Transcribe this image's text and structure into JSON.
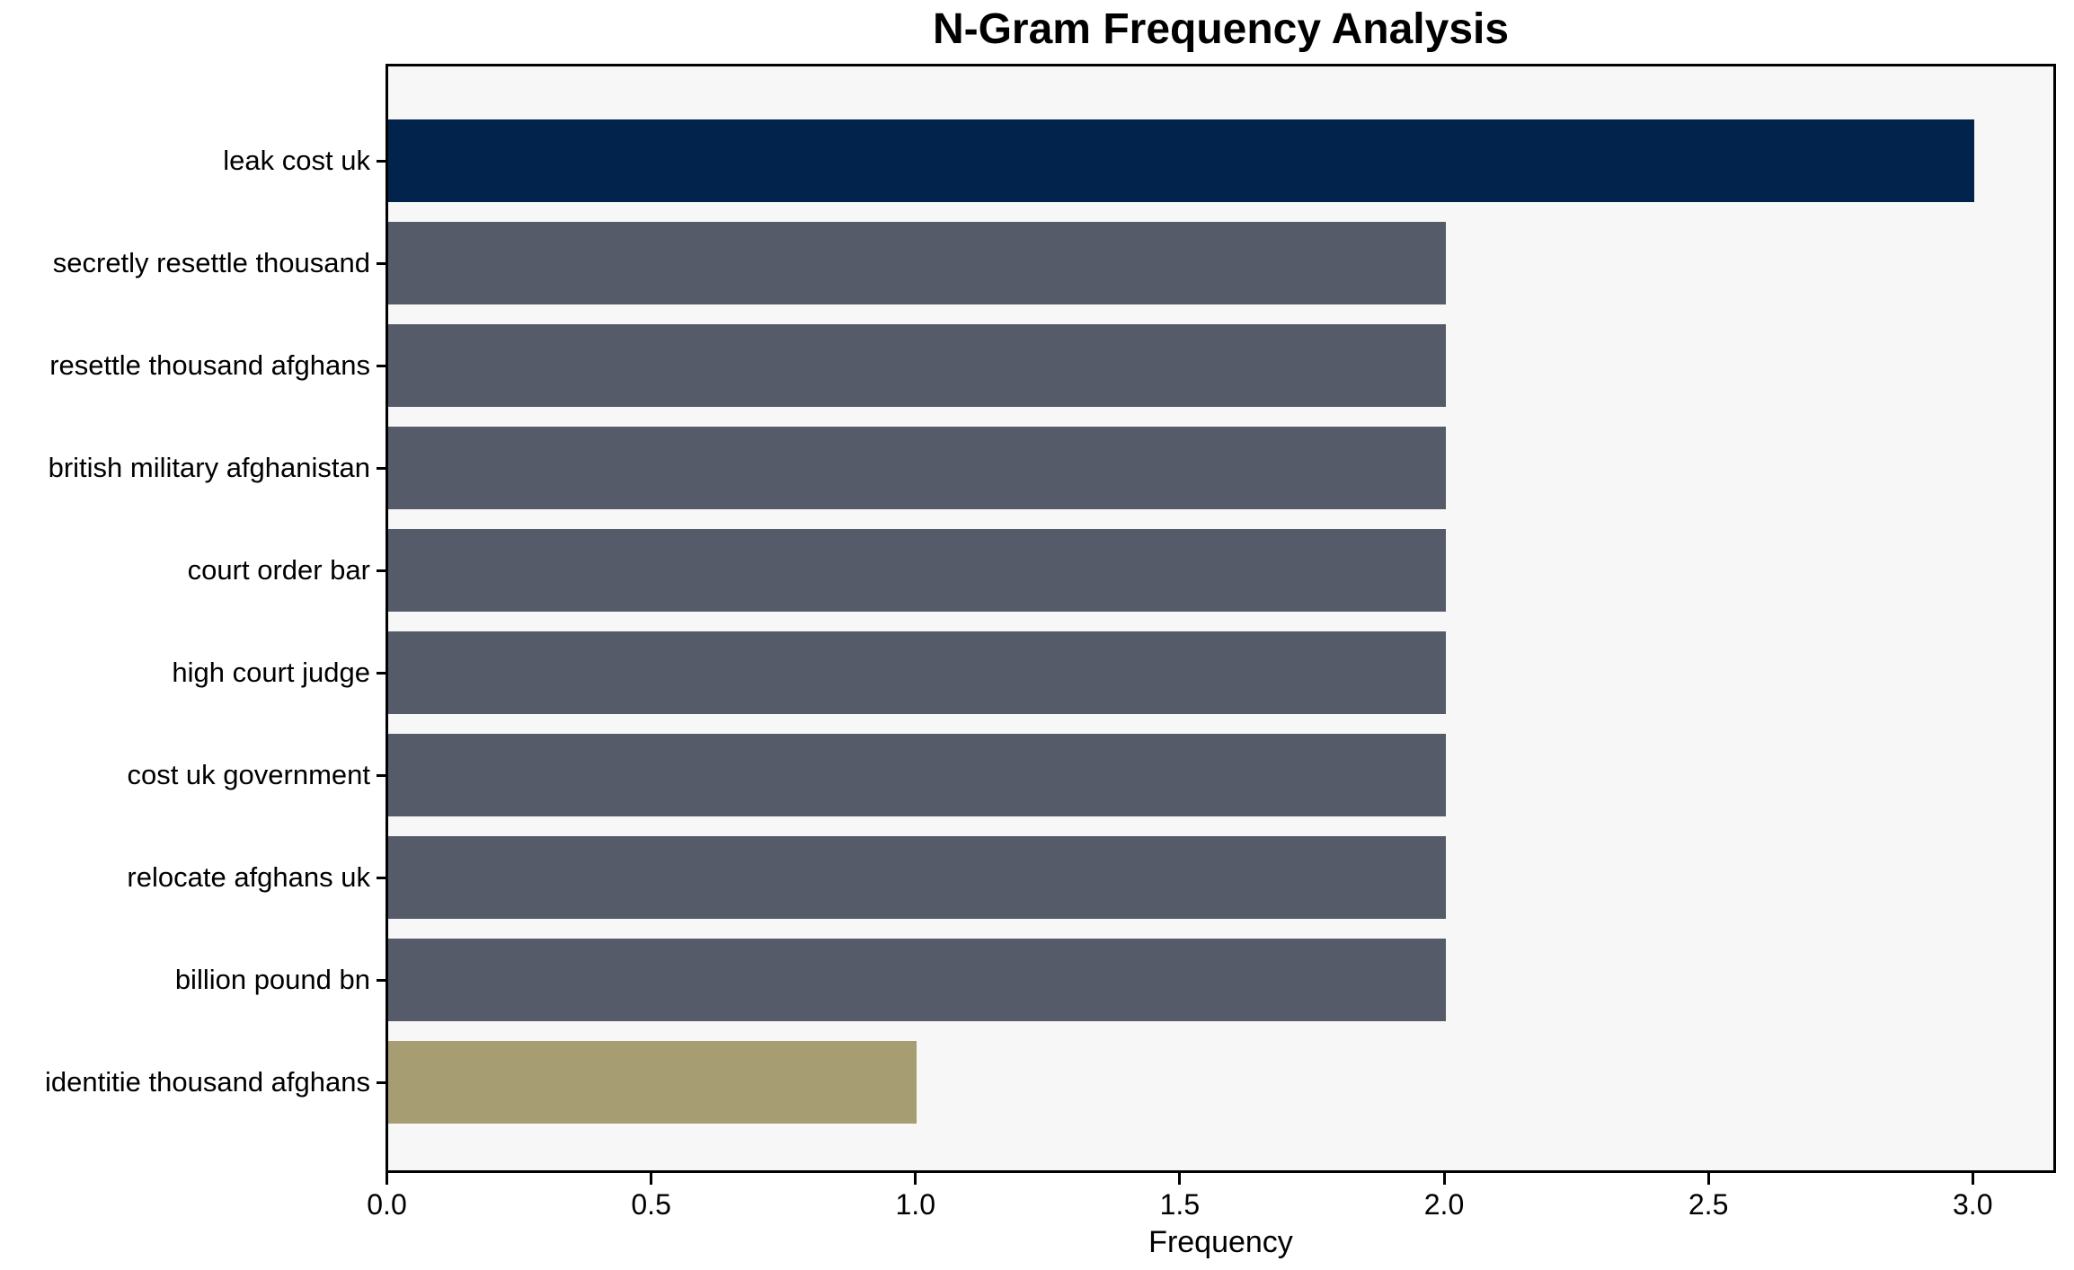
{
  "chart_data": {
    "type": "bar",
    "orientation": "horizontal",
    "title": "N-Gram Frequency Analysis",
    "xlabel": "Frequency",
    "ylabel": "",
    "categories": [
      "leak cost uk",
      "secretly resettle thousand",
      "resettle thousand afghans",
      "british military afghanistan",
      "court order bar",
      "high court judge",
      "cost uk government",
      "relocate afghans uk",
      "billion pound bn",
      "identitie thousand afghans"
    ],
    "values": [
      3,
      2,
      2,
      2,
      2,
      2,
      2,
      2,
      2,
      1
    ],
    "bar_colors": [
      "#02234C",
      "#565B6A",
      "#565B6A",
      "#565B6A",
      "#565B6A",
      "#565B6A",
      "#565B6A",
      "#565B6A",
      "#565B6A",
      "#A69D73"
    ],
    "xlim": [
      0,
      3.15
    ],
    "xticks": [
      0.0,
      0.5,
      1.0,
      1.5,
      2.0,
      2.5,
      3.0
    ],
    "xtick_labels": [
      "0.0",
      "0.5",
      "1.0",
      "1.5",
      "2.0",
      "2.5",
      "3.0"
    ],
    "grid": false,
    "legend": false,
    "plot_background": "#F7F7F7",
    "spine_color": "#000000",
    "text_color": "#000000"
  }
}
